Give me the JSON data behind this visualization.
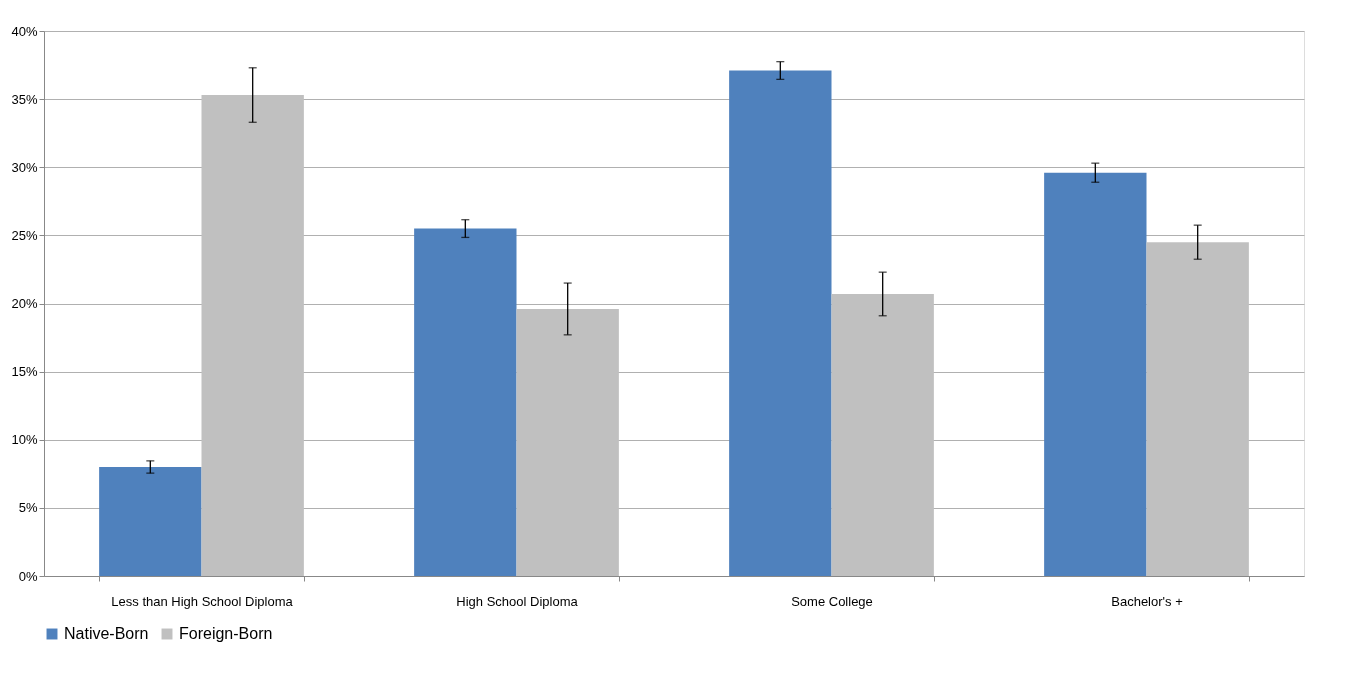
{
  "chart_data": {
    "type": "bar",
    "categories": [
      "Less than High School Diploma",
      "High School Diploma",
      "Some College",
      "Bachelor's +"
    ],
    "series": [
      {
        "name": "Native-Born",
        "color": "#4f81bd",
        "values": [
          8.0,
          25.5,
          37.1,
          29.6
        ],
        "errors": [
          0.45,
          0.65,
          0.65,
          0.7
        ]
      },
      {
        "name": "Foreign-Born",
        "color": "#c0c0c0",
        "values": [
          35.3,
          19.6,
          20.7,
          24.5
        ],
        "errors": [
          2.0,
          1.9,
          1.6,
          1.25
        ]
      }
    ],
    "ylim": [
      0,
      40
    ],
    "yticks": [
      {
        "value": 0,
        "label": "0%"
      },
      {
        "value": 5,
        "label": "5%"
      },
      {
        "value": 10,
        "label": "10%"
      },
      {
        "value": 15,
        "label": "15%"
      },
      {
        "value": 20,
        "label": "20%"
      },
      {
        "value": 25,
        "label": "25%"
      },
      {
        "value": 30,
        "label": "30%"
      },
      {
        "value": 35,
        "label": "35%"
      },
      {
        "value": 40,
        "label": "40%"
      }
    ],
    "grid": "y",
    "legend": "bottom"
  }
}
